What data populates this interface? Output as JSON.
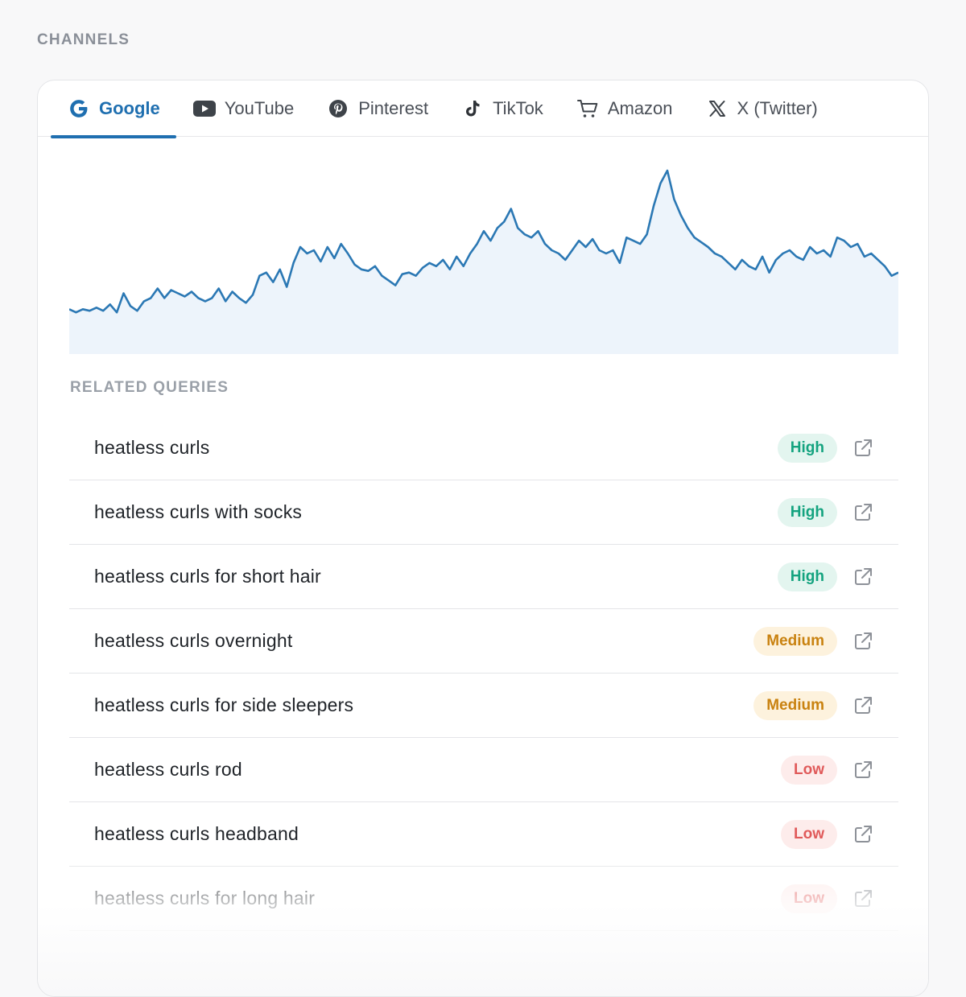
{
  "section_label": "CHANNELS",
  "tabs": [
    {
      "label": "Google",
      "icon": "google-icon",
      "active": true
    },
    {
      "label": "YouTube",
      "icon": "youtube-icon",
      "active": false
    },
    {
      "label": "Pinterest",
      "icon": "pinterest-icon",
      "active": false
    },
    {
      "label": "TikTok",
      "icon": "tiktok-icon",
      "active": false
    },
    {
      "label": "Amazon",
      "icon": "cart-icon",
      "active": false
    },
    {
      "label": "X (Twitter)",
      "icon": "x-icon",
      "active": false
    }
  ],
  "colors": {
    "accent": "#1f6fb0",
    "chart_line": "#2b78b4",
    "chart_fill": "#edf4fb",
    "high": "#14a37f",
    "medium": "#c98210",
    "low": "#e05a5a"
  },
  "chart_data": {
    "type": "area",
    "title": "",
    "xlabel": "",
    "ylabel": "",
    "ylim": [
      0,
      100
    ],
    "grid": false,
    "series": [
      {
        "values": [
          13,
          11,
          13,
          12,
          14,
          12,
          16,
          11,
          23,
          15,
          12,
          18,
          20,
          26,
          20,
          25,
          23,
          21,
          24,
          20,
          18,
          20,
          26,
          18,
          24,
          20,
          17,
          22,
          34,
          36,
          30,
          38,
          27,
          42,
          52,
          48,
          50,
          43,
          52,
          45,
          54,
          48,
          41,
          38,
          37,
          40,
          34,
          31,
          28,
          35,
          36,
          34,
          39,
          42,
          40,
          44,
          38,
          46,
          40,
          48,
          54,
          62,
          56,
          64,
          68,
          76,
          64,
          60,
          58,
          62,
          54,
          50,
          48,
          44,
          50,
          56,
          52,
          57,
          50,
          48,
          50,
          42,
          58,
          56,
          54,
          60,
          78,
          92,
          100,
          82,
          72,
          64,
          58,
          55,
          52,
          48,
          46,
          42,
          38,
          44,
          40,
          38,
          46,
          36,
          44,
          48,
          50,
          46,
          44,
          52,
          48,
          50,
          46,
          58,
          56,
          52,
          54,
          46,
          48,
          44,
          40,
          34,
          36
        ]
      }
    ]
  },
  "related_label": "RELATED QUERIES",
  "queries": [
    {
      "query": "heatless curls",
      "level": "High"
    },
    {
      "query": "heatless curls with socks",
      "level": "High"
    },
    {
      "query": "heatless curls for short hair",
      "level": "High"
    },
    {
      "query": "heatless curls overnight",
      "level": "Medium"
    },
    {
      "query": "heatless curls for side sleepers",
      "level": "Medium"
    },
    {
      "query": "heatless curls rod",
      "level": "Low"
    },
    {
      "query": "heatless curls headband",
      "level": "Low"
    },
    {
      "query": "heatless curls for long hair",
      "level": "Low"
    }
  ]
}
